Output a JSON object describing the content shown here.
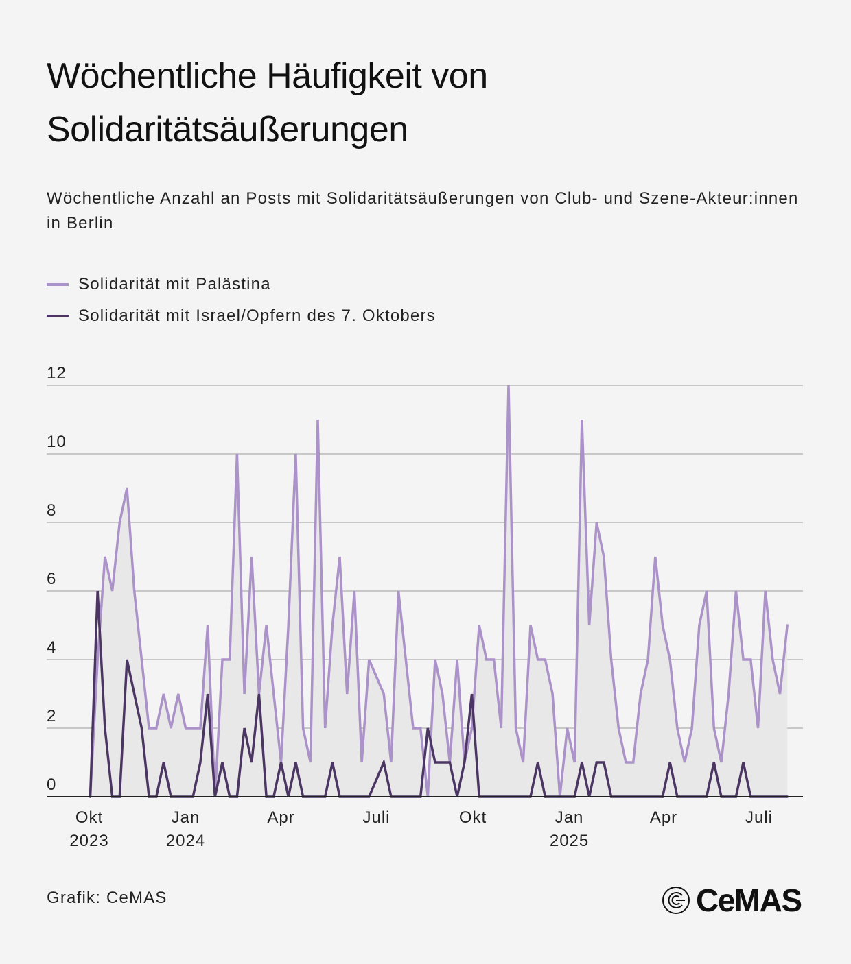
{
  "title": "Wöchentliche Häufigkeit von Solidaritätsäußerungen",
  "subtitle": "Wöchentliche Anzahl an Posts mit Solidaritätsäußerungen von Club- und Szene-Akteur:innen in Berlin",
  "source": "Grafik: CeMAS",
  "logo": "CeMAS",
  "colors": {
    "palestine": "#ab92c8",
    "israel": "#4b3563",
    "area": "#e8e8e8",
    "grid": "#c8c8c8",
    "background": "#f4f4f4"
  },
  "chart_data": {
    "type": "line",
    "title": "Wöchentliche Häufigkeit von Solidaritätsäußerungen",
    "xlabel": "",
    "ylabel": "",
    "ylim": [
      0,
      12
    ],
    "yticks": [
      0,
      2,
      4,
      6,
      8,
      10,
      12
    ],
    "grid": true,
    "legend": "top-left",
    "xticks": [
      {
        "date": "2023-10-01",
        "label": "Okt",
        "sublabel": "2023"
      },
      {
        "date": "2024-01-01",
        "label": "Jan",
        "sublabel": "2024"
      },
      {
        "date": "2024-04-01",
        "label": "Apr",
        "sublabel": ""
      },
      {
        "date": "2024-07-01",
        "label": "Juli",
        "sublabel": ""
      },
      {
        "date": "2024-10-01",
        "label": "Okt",
        "sublabel": ""
      },
      {
        "date": "2025-01-01",
        "label": "Jan",
        "sublabel": "2025"
      },
      {
        "date": "2025-04-01",
        "label": "Apr",
        "sublabel": ""
      },
      {
        "date": "2025-07-01",
        "label": "Juli",
        "sublabel": ""
      }
    ],
    "x": [
      "2023-10-02",
      "2023-10-09",
      "2023-10-16",
      "2023-10-23",
      "2023-10-30",
      "2023-11-06",
      "2023-11-13",
      "2023-11-20",
      "2023-11-27",
      "2023-12-04",
      "2023-12-11",
      "2023-12-18",
      "2023-12-25",
      "2024-01-01",
      "2024-01-08",
      "2024-01-15",
      "2024-01-22",
      "2024-01-29",
      "2024-02-05",
      "2024-02-12",
      "2024-02-19",
      "2024-02-26",
      "2024-03-04",
      "2024-03-11",
      "2024-03-18",
      "2024-03-25",
      "2024-04-01",
      "2024-04-08",
      "2024-04-15",
      "2024-04-22",
      "2024-04-29",
      "2024-05-06",
      "2024-05-13",
      "2024-05-20",
      "2024-05-27",
      "2024-06-03",
      "2024-06-10",
      "2024-06-17",
      "2024-06-24",
      "2024-07-01",
      "2024-07-08",
      "2024-07-15",
      "2024-07-22",
      "2024-07-29",
      "2024-08-05",
      "2024-08-12",
      "2024-08-19",
      "2024-08-26",
      "2024-09-02",
      "2024-09-09",
      "2024-09-16",
      "2024-09-23",
      "2024-09-30",
      "2024-10-07",
      "2024-10-14",
      "2024-10-21",
      "2024-10-28",
      "2024-11-04",
      "2024-11-11",
      "2024-11-18",
      "2024-11-25",
      "2024-12-02",
      "2024-12-09",
      "2024-12-16",
      "2024-12-23",
      "2024-12-30",
      "2025-01-06",
      "2025-01-13",
      "2025-01-20",
      "2025-01-27",
      "2025-02-03",
      "2025-02-10",
      "2025-02-17",
      "2025-02-24",
      "2025-03-03",
      "2025-03-10",
      "2025-03-17",
      "2025-03-24",
      "2025-03-31",
      "2025-04-07",
      "2025-04-14",
      "2025-04-21",
      "2025-04-28",
      "2025-05-05",
      "2025-05-12",
      "2025-05-19",
      "2025-05-26",
      "2025-06-02",
      "2025-06-09",
      "2025-06-16",
      "2025-06-23",
      "2025-06-30",
      "2025-07-07",
      "2025-07-14",
      "2025-07-21",
      "2025-07-28"
    ],
    "series": [
      {
        "name": "Solidarität mit Palästina",
        "color": "#ab92c8",
        "area": true,
        "values": [
          0,
          4,
          7,
          6,
          8,
          9,
          6,
          4,
          2,
          2,
          3,
          2,
          3,
          2,
          2,
          2,
          5,
          0,
          4,
          4,
          10,
          3,
          7,
          3,
          5,
          3,
          1,
          5,
          10,
          2,
          1,
          11,
          2,
          5,
          7,
          3,
          6,
          1,
          4,
          null,
          3,
          1,
          6,
          4,
          2,
          2,
          0,
          4,
          3,
          1,
          4,
          1,
          2,
          5,
          4,
          4,
          2,
          12,
          2,
          1,
          5,
          4,
          4,
          3,
          0,
          2,
          1,
          11,
          5,
          8,
          7,
          4,
          2,
          1,
          1,
          3,
          4,
          7,
          5,
          4,
          2,
          1,
          2,
          5,
          6,
          2,
          1,
          3,
          6,
          4,
          4,
          2,
          6,
          4,
          3,
          5
        ]
      },
      {
        "name": "Solidarität mit Israel/Opfern des 7. Oktobers",
        "color": "#4b3563",
        "area": false,
        "values": [
          0,
          6,
          2,
          0,
          0,
          4,
          3,
          2,
          0,
          0,
          1,
          0,
          0,
          0,
          0,
          1,
          3,
          0,
          1,
          0,
          0,
          2,
          1,
          3,
          0,
          0,
          1,
          0,
          1,
          0,
          0,
          0,
          0,
          1,
          0,
          0,
          0,
          0,
          0,
          null,
          1,
          0,
          0,
          0,
          0,
          0,
          2,
          1,
          1,
          1,
          0,
          1,
          3,
          0,
          0,
          0,
          0,
          0,
          0,
          0,
          0,
          1,
          0,
          0,
          0,
          0,
          0,
          1,
          0,
          1,
          1,
          0,
          0,
          0,
          0,
          0,
          0,
          0,
          0,
          1,
          0,
          0,
          0,
          0,
          0,
          1,
          0,
          0,
          0,
          1,
          0,
          0,
          0,
          0,
          0,
          0
        ]
      }
    ]
  }
}
